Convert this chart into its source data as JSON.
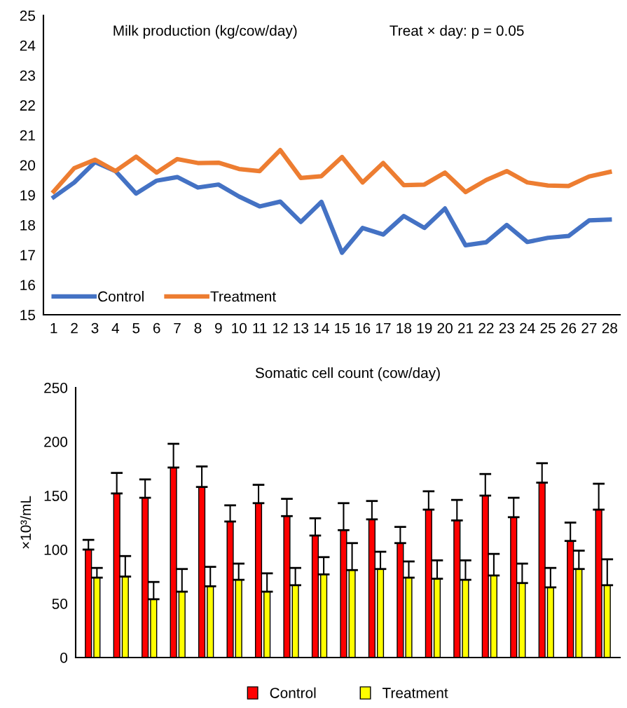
{
  "chart_data": [
    {
      "type": "line",
      "title": "Milk production (kg/cow/day)",
      "annotations": [
        "Treat × day: p = 0.05"
      ],
      "categories": [
        "1",
        "2",
        "3",
        "4",
        "5",
        "6",
        "7",
        "8",
        "9",
        "10",
        "11",
        "12",
        "13",
        "14",
        "15",
        "16",
        "17",
        "18",
        "19",
        "20",
        "21",
        "22",
        "23",
        "24",
        "25",
        "26",
        "27",
        "28"
      ],
      "series": [
        {
          "name": "Control",
          "color": "#4472c4",
          "values": [
            18.93,
            19.42,
            20.1,
            19.8,
            19.05,
            19.48,
            19.6,
            19.25,
            19.35,
            18.95,
            18.62,
            18.78,
            18.1,
            18.77,
            17.07,
            17.9,
            17.68,
            18.3,
            17.9,
            18.55,
            17.32,
            17.42,
            18.0,
            17.43,
            17.57,
            17.63,
            18.15,
            18.18
          ]
        },
        {
          "name": "Treatment",
          "color": "#ed7d31",
          "values": [
            19.12,
            19.9,
            20.18,
            19.8,
            20.28,
            19.75,
            20.2,
            20.07,
            20.08,
            19.87,
            19.8,
            20.5,
            19.57,
            19.63,
            20.27,
            19.42,
            20.07,
            19.33,
            19.35,
            19.75,
            19.1,
            19.5,
            19.8,
            19.42,
            19.32,
            19.3,
            19.62,
            19.77
          ]
        }
      ],
      "ylim": [
        15,
        25
      ],
      "yticks": [
        15,
        16,
        17,
        18,
        19,
        20,
        21,
        22,
        23,
        24,
        25
      ],
      "grid": false,
      "legend": "bottom left",
      "marker": "none",
      "line_style": "solid"
    },
    {
      "type": "bar",
      "title": "Somatic cell count (cow/day)",
      "ylabel": "×10³/mL",
      "categories": [
        null,
        null,
        null,
        null,
        null,
        null,
        null,
        null,
        null,
        null,
        null,
        null,
        null,
        null,
        null,
        null,
        null,
        null,
        null
      ],
      "series": [
        {
          "name": "Control",
          "color": "#ff0000",
          "values": [
            100,
            152,
            148,
            176,
            158,
            126,
            143,
            131,
            113,
            118,
            128,
            106,
            137,
            127,
            150,
            130,
            162,
            108,
            137
          ],
          "errors": [
            [
              100,
              109
            ],
            [
              152,
              171
            ],
            [
              148,
              165
            ],
            [
              176,
              198
            ],
            [
              158,
              177
            ],
            [
              126,
              141
            ],
            [
              143,
              160
            ],
            [
              131,
              147
            ],
            [
              113,
              129
            ],
            [
              118,
              143
            ],
            [
              128,
              145
            ],
            [
              106,
              121
            ],
            [
              137,
              154
            ],
            [
              127,
              146
            ],
            [
              150,
              170
            ],
            [
              130,
              148
            ],
            [
              162,
              180
            ],
            [
              108,
              125
            ],
            [
              137,
              161
            ]
          ]
        },
        {
          "name": "Treatment",
          "color": "#ffff00",
          "values": [
            74,
            75,
            54,
            61,
            66,
            72,
            61,
            67,
            77,
            81,
            82,
            74,
            73,
            72,
            76,
            69,
            65,
            82,
            67
          ],
          "errors": [
            [
              74,
              83
            ],
            [
              75,
              94
            ],
            [
              54,
              70
            ],
            [
              61,
              82
            ],
            [
              66,
              84
            ],
            [
              72,
              87
            ],
            [
              61,
              78
            ],
            [
              67,
              83
            ],
            [
              77,
              93
            ],
            [
              81,
              106
            ],
            [
              82,
              98
            ],
            [
              74,
              89
            ],
            [
              73,
              90
            ],
            [
              72,
              90
            ],
            [
              76,
              96
            ],
            [
              69,
              87
            ],
            [
              65,
              83
            ],
            [
              82,
              99
            ],
            [
              67,
              91
            ]
          ]
        }
      ],
      "ylim": [
        0,
        250
      ],
      "yticks": [
        0,
        50,
        100,
        150,
        200,
        250
      ],
      "grid": false,
      "legend": "bottom"
    }
  ]
}
